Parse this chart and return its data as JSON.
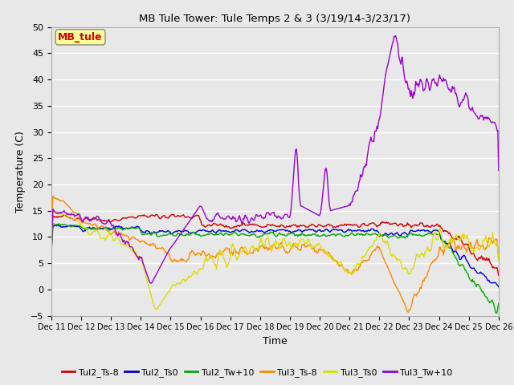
{
  "title": "MB Tule Tower: Tule Temps 2 & 3 (3/19/14-3/23/17)",
  "xlabel": "Time",
  "ylabel": "Temperature (C)",
  "xlim": [
    0,
    15
  ],
  "ylim": [
    -5,
    50
  ],
  "yticks": [
    -5,
    0,
    5,
    10,
    15,
    20,
    25,
    30,
    35,
    40,
    45,
    50
  ],
  "xtick_labels": [
    "Dec 11",
    "Dec 12",
    "Dec 13",
    "Dec 14",
    "Dec 15",
    "Dec 16",
    "Dec 17",
    "Dec 18",
    "Dec 19",
    "Dec 20",
    "Dec 21",
    "Dec 22",
    "Dec 23",
    "Dec 24",
    "Dec 25",
    "Dec 26"
  ],
  "background_color": "#e8e8e8",
  "grid_color": "#ffffff",
  "series": {
    "Tul2_Ts-8": {
      "color": "#cc0000",
      "lw": 1.0
    },
    "Tul2_Ts0": {
      "color": "#0000cc",
      "lw": 1.0
    },
    "Tul2_Tw+10": {
      "color": "#00aa00",
      "lw": 1.0
    },
    "Tul3_Ts-8": {
      "color": "#ff8800",
      "lw": 1.0
    },
    "Tul3_Ts0": {
      "color": "#dddd00",
      "lw": 1.0
    },
    "Tul3_Tw+10": {
      "color": "#9900cc",
      "lw": 1.0
    }
  },
  "legend_label": "MB_tule",
  "legend_text_color": "#cc0000",
  "legend_box_color": "#ffff99"
}
